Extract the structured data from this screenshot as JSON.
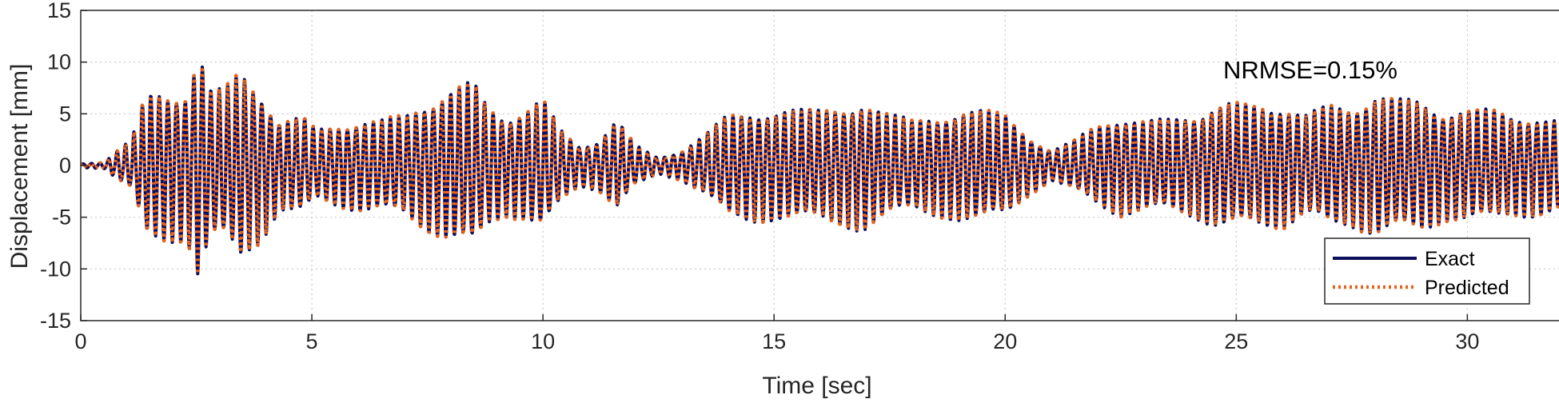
{
  "colors": {
    "exact": "#0d0d5e",
    "predicted": "#e36421",
    "grid": "#c8c8c8",
    "axes": "#262626"
  },
  "chart_data": {
    "type": "line",
    "title": "",
    "xlabel": "Time [sec]",
    "ylabel": "Displacement [mm]",
    "xlim": [
      0,
      32
    ],
    "ylim": [
      -15,
      15
    ],
    "xticks": [
      0,
      5,
      10,
      15,
      20,
      25,
      30
    ],
    "yticks": [
      -15,
      -10,
      -5,
      0,
      5,
      10,
      15
    ],
    "xtick_labels": [
      "0",
      "5",
      "10",
      "15",
      "20",
      "25",
      "30"
    ],
    "ytick_labels": [
      "-15",
      "-10",
      "-5",
      "0",
      "5",
      "10",
      "15"
    ],
    "grid": true,
    "legend": {
      "position": "bottom-right"
    },
    "annotation": "NRMSE=0.15%",
    "series": [
      {
        "name": "Exact",
        "style": "solid"
      },
      {
        "name": "Predicted",
        "style": "dotted"
      }
    ],
    "envelope": {
      "t": [
        0,
        0.5,
        0.8,
        1.1,
        1.4,
        1.7,
        2.0,
        2.3,
        2.55,
        2.8,
        3.1,
        3.45,
        3.9,
        4.3,
        4.8,
        5.1,
        5.5,
        6.0,
        6.5,
        7.0,
        7.5,
        8.0,
        8.5,
        8.8,
        9.2,
        9.6,
        10.0,
        10.4,
        10.8,
        11.2,
        11.6,
        12.0,
        12.5,
        13.0,
        13.5,
        14.0,
        14.5,
        15.0,
        15.5,
        16.0,
        16.5,
        16.9,
        17.5,
        18.0,
        18.5,
        19.0,
        19.5,
        20.0,
        20.5,
        21.0,
        21.5,
        22.0,
        22.5,
        23.0,
        23.5,
        24.0,
        24.5,
        24.8,
        25.2,
        25.6,
        26.0,
        26.5,
        27.0,
        27.5,
        28.0,
        28.5,
        29.0,
        29.5,
        30.0,
        30.5,
        31.0,
        31.5,
        32.0
      ],
      "a": [
        0.2,
        0.3,
        1.5,
        2.5,
        7.0,
        7.5,
        7.5,
        7.5,
        11.5,
        7.5,
        7.5,
        9.5,
        7.5,
        4.5,
        4.8,
        3.5,
        4.0,
        4.5,
        4.5,
        5.0,
        6.5,
        7.5,
        8.2,
        6.0,
        5.0,
        5.5,
        6.5,
        3.5,
        2.0,
        2.5,
        4.5,
        2.0,
        0.8,
        1.5,
        3.0,
        5.0,
        5.5,
        5.5,
        5.5,
        5.5,
        6.0,
        6.5,
        5.0,
        4.5,
        5.0,
        5.5,
        5.5,
        5.0,
        3.0,
        1.5,
        2.5,
        4.0,
        5.0,
        4.5,
        4.5,
        5.0,
        6.0,
        6.2,
        6.0,
        6.0,
        6.2,
        5.0,
        6.0,
        6.0,
        7.0,
        6.5,
        6.5,
        5.5,
        5.5,
        5.5,
        5.0,
        5.0,
        4.5
      ]
    },
    "base_period_sec": 0.185,
    "sample_step_sec": 0.01
  }
}
